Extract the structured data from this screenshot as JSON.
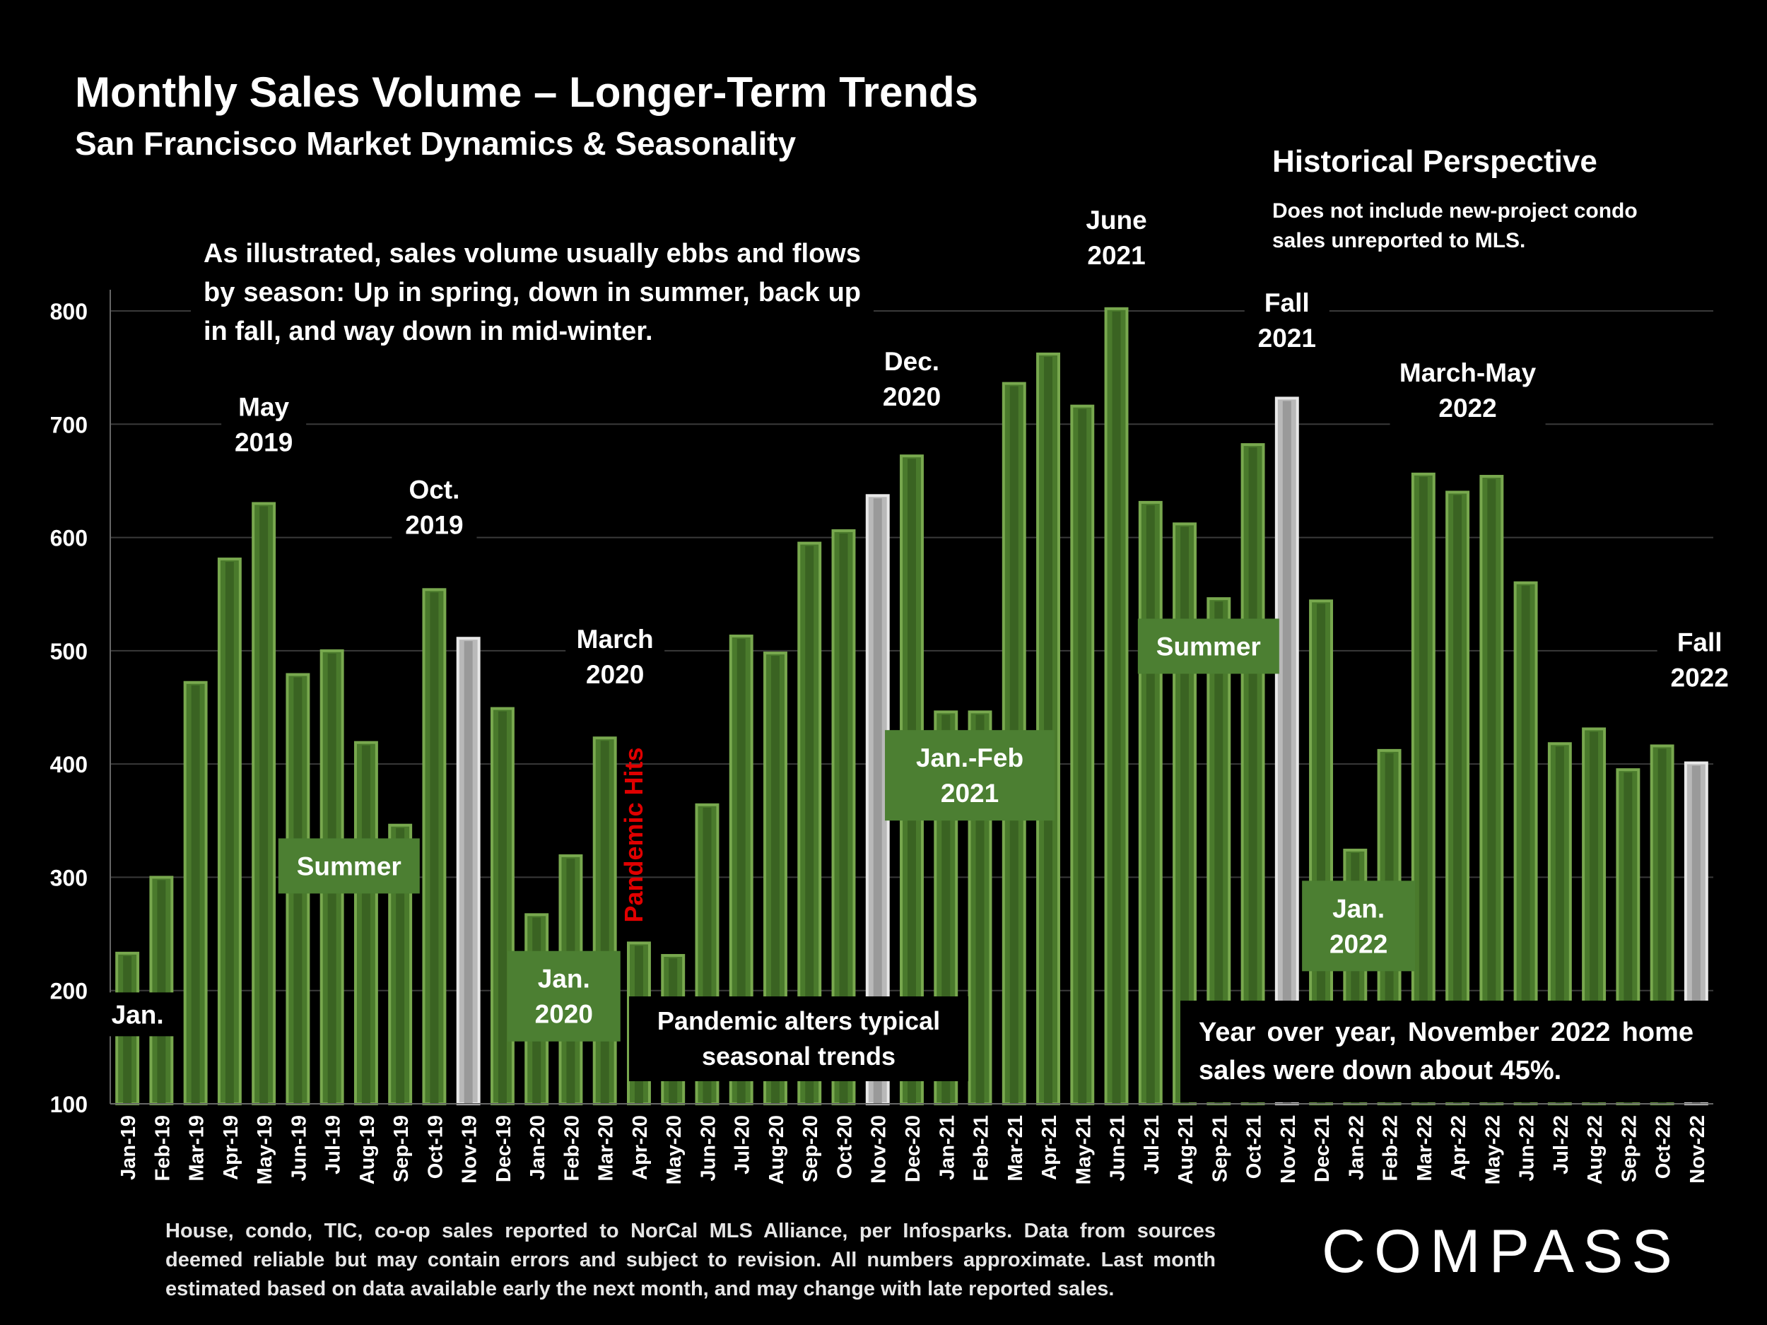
{
  "title": "Monthly Sales Volume – Longer-Term Trends",
  "subtitle": "San Francisco Market Dynamics & Seasonality",
  "historical": {
    "title": "Historical Perspective",
    "note": "Does not include new-project condo sales unreported to MLS."
  },
  "intro_text": "As illustrated, sales volume usually ebbs and flows by season: Up in spring, down in summer, back up in fall, and way down in mid-winter.",
  "yoy_text": "Year over year, November 2022 home sales were down about 45%.",
  "pandemic_box_text": "Pandemic alters typical seasonal trends",
  "footnote": "House, condo, TIC, co-op sales reported to NorCal MLS Alliance, per Infosparks. Data from sources deemed reliable but may contain errors and subject to revision. All numbers approximate. Last month estimated based on data available early the next month, and may change with late reported sales.",
  "logo": "COMPASS",
  "colors": {
    "green": "#4a7a2c",
    "green_light": "#78a84e",
    "gray": "#b9b9b9",
    "gray_light": "#e8e8e8",
    "label_box": "#4c7f32",
    "pandemic_red": "#e00000"
  },
  "chart_data": {
    "type": "bar",
    "categories": [
      "Jan-19",
      "Feb-19",
      "Mar-19",
      "Apr-19",
      "May-19",
      "Jun-19",
      "Jul-19",
      "Aug-19",
      "Sep-19",
      "Oct-19",
      "Nov-19",
      "Dec-19",
      "Jan-20",
      "Feb-20",
      "Mar-20",
      "Apr-20",
      "May-20",
      "Jun-20",
      "Jul-20",
      "Aug-20",
      "Sep-20",
      "Oct-20",
      "Nov-20",
      "Dec-20",
      "Jan-21",
      "Feb-21",
      "Mar-21",
      "Apr-21",
      "May-21",
      "Jun-21",
      "Jul-21",
      "Aug-21",
      "Sep-21",
      "Oct-21",
      "Nov-21",
      "Dec-21",
      "Jan-22",
      "Feb-22",
      "Mar-22",
      "Apr-22",
      "May-22",
      "Jun-22",
      "Jul-22",
      "Aug-22",
      "Sep-22",
      "Oct-22",
      "Nov-22"
    ],
    "values": [
      233,
      300,
      472,
      581,
      630,
      479,
      500,
      419,
      346,
      554,
      511,
      449,
      267,
      319,
      423,
      242,
      231,
      364,
      513,
      498,
      595,
      606,
      637,
      672,
      446,
      446,
      736,
      762,
      716,
      802,
      631,
      612,
      546,
      682,
      723,
      544,
      324,
      412,
      656,
      640,
      654,
      560,
      418,
      431,
      395,
      416,
      401
    ],
    "highlighted": [
      "Nov-19",
      "Nov-20",
      "Nov-21",
      "Nov-22"
    ],
    "ylim": [
      100,
      800
    ],
    "yticks": [
      100,
      200,
      300,
      400,
      500,
      600,
      700,
      800
    ],
    "grid": true,
    "annotations": [
      {
        "text": "Jan.",
        "style": "plain",
        "cat": 0.3,
        "y": 179
      },
      {
        "text": "May\n2019",
        "style": "plain",
        "cat": 4,
        "y": 700
      },
      {
        "text": "Summer",
        "style": "box",
        "cat": 6.5,
        "y": 310
      },
      {
        "text": "Oct.\n2019",
        "style": "plain",
        "cat": 9,
        "y": 627
      },
      {
        "text": "Jan.\n2020",
        "style": "box",
        "cat": 12.8,
        "y": 195
      },
      {
        "text": "March\n2020",
        "style": "plain",
        "cat": 14.3,
        "y": 495
      },
      {
        "text": "Pandemic Hits",
        "style": "red-vertical",
        "cat": 15.1,
        "y": 260
      },
      {
        "text": "Dec.\n2020",
        "style": "plain",
        "cat": 23,
        "y": 740
      },
      {
        "text": "Jan.-Feb\n2021",
        "style": "box",
        "cat": 24.7,
        "y": 390
      },
      {
        "text": "June\n2021",
        "style": "plain",
        "cat": 29,
        "y": 865
      },
      {
        "text": "Summer",
        "style": "box",
        "cat": 31.7,
        "y": 504
      },
      {
        "text": "Fall\n2021",
        "style": "plain",
        "cat": 34,
        "y": 792
      },
      {
        "text": "March-May\n2022",
        "style": "plain",
        "cat": 39.3,
        "y": 730
      },
      {
        "text": "Jan.\n2022",
        "style": "box",
        "cat": 36.1,
        "y": 257
      },
      {
        "text": "Fall\n2022",
        "style": "plain",
        "cat": 46.1,
        "y": 492
      }
    ]
  }
}
